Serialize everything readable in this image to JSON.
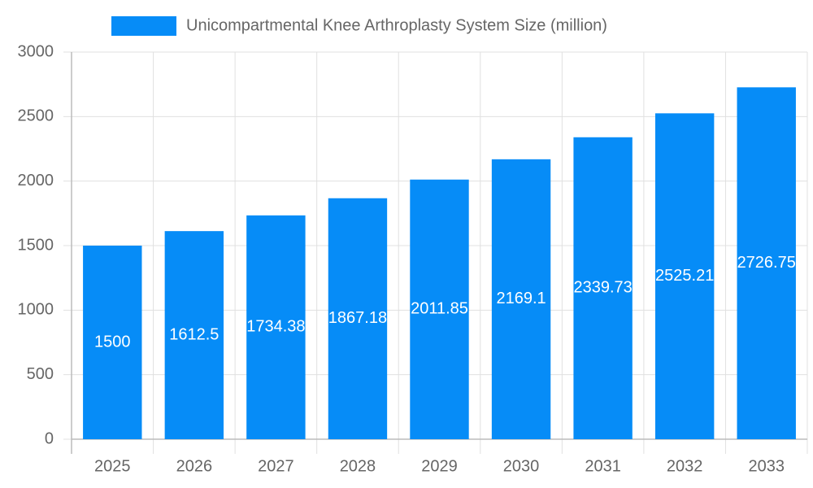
{
  "chart_data": {
    "type": "bar",
    "legend": "Unicompartmental Knee Arthroplasty System Size (million)",
    "categories": [
      "2025",
      "2026",
      "2027",
      "2028",
      "2029",
      "2030",
      "2031",
      "2032",
      "2033"
    ],
    "values": [
      1500,
      1612.5,
      1734.38,
      1867.18,
      2011.85,
      2169.1,
      2339.73,
      2525.21,
      2726.75
    ],
    "color": "#068cf7",
    "ylim": [
      0,
      3000
    ],
    "yticks": [
      0,
      500,
      1000,
      1500,
      2000,
      2500,
      3000
    ],
    "grid": true
  }
}
